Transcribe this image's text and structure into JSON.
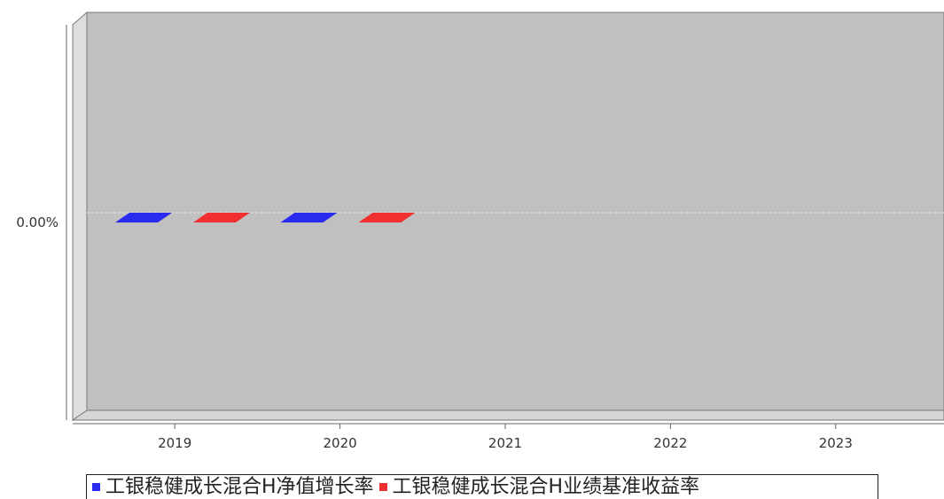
{
  "chart_data": {
    "type": "bar",
    "style": "3d",
    "categories": [
      "2019",
      "2020",
      "2021",
      "2022",
      "2023"
    ],
    "series": [
      {
        "name": "工银稳健成长混合H净值增长率",
        "color": "#2b2bf0",
        "values": [
          0,
          0,
          null,
          null,
          null
        ]
      },
      {
        "name": "工银稳健成长混合H业绩基准收益率",
        "color": "#f03030",
        "values": [
          0,
          0,
          null,
          null,
          null
        ]
      }
    ],
    "y_tick_labels": [
      "0.00%"
    ],
    "y_ticks": [
      0
    ],
    "ylim": [
      -1,
      1
    ],
    "grid": true,
    "legend_position": "bottom",
    "colors": {
      "plot_background": "#c0c0c0",
      "wall_left": "#dedede",
      "floor": "#d6d6d6",
      "gridline": "#e8e8e8"
    }
  }
}
